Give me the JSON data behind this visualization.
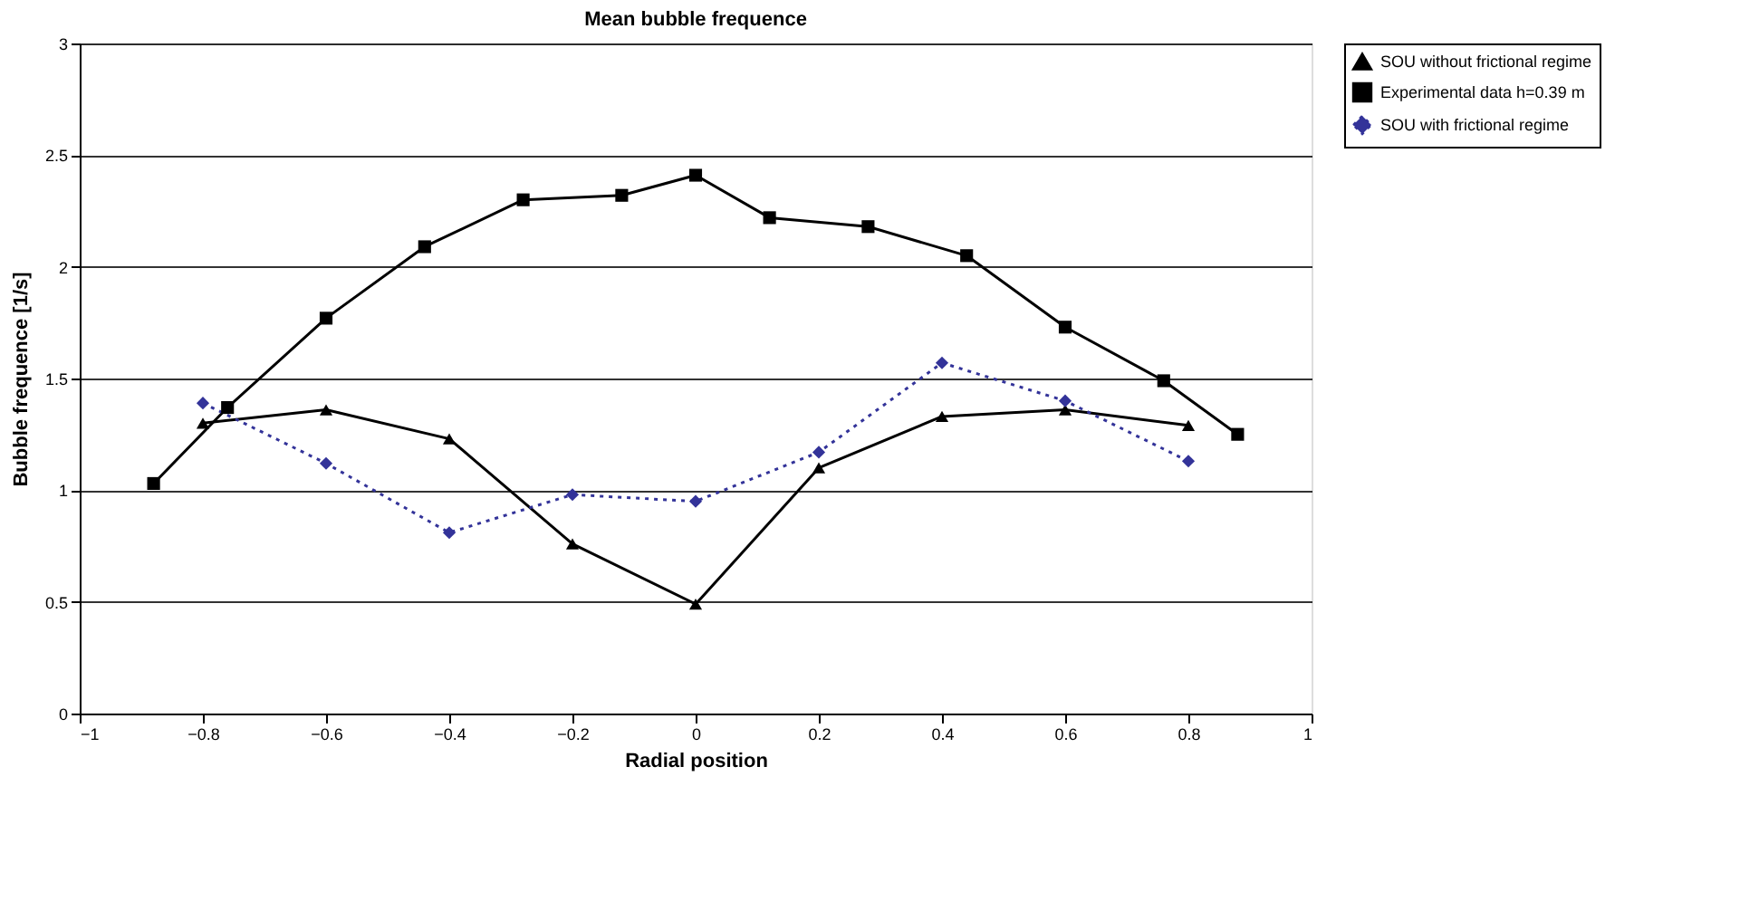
{
  "chart_data": {
    "type": "line",
    "title": "Mean bubble frequence",
    "xlabel": "Radial position",
    "ylabel": "Bubble frequence [1/s]",
    "xlim": [
      -1,
      1
    ],
    "xticks": [
      -1,
      -0.8,
      -0.6,
      -0.4,
      -0.2,
      0,
      0.2,
      0.4,
      0.6,
      0.8,
      1
    ],
    "ylim": [
      0,
      3
    ],
    "yticks": [
      0,
      0.5,
      1,
      1.5,
      2,
      2.5,
      3
    ],
    "grid": "y",
    "legend": "right",
    "series": [
      {
        "name": "SOU without frictional regime",
        "color": "#000000",
        "marker": "triangle",
        "line_style": "solid",
        "x": [
          -0.8,
          -0.6,
          -0.4,
          -0.2,
          0,
          0.2,
          0.4,
          0.6,
          0.8
        ],
        "values": [
          1.3,
          1.36,
          1.23,
          0.76,
          0.49,
          1.1,
          1.33,
          1.36,
          1.29
        ]
      },
      {
        "name": "Experimental data h=0.39 m",
        "color": "#000000",
        "marker": "square",
        "line_style": "solid",
        "x": [
          -0.88,
          -0.76,
          -0.6,
          -0.44,
          -0.28,
          -0.12,
          0,
          0.12,
          0.28,
          0.44,
          0.6,
          0.76,
          0.88
        ],
        "values": [
          1.03,
          1.37,
          1.77,
          2.09,
          2.3,
          2.32,
          2.41,
          2.22,
          2.18,
          2.05,
          1.73,
          1.49,
          1.25
        ]
      },
      {
        "name": "SOU with frictional regime",
        "color": "#333399",
        "marker": "diamond",
        "line_style": "dotted",
        "x": [
          -0.8,
          -0.6,
          -0.4,
          -0.2,
          0,
          0.2,
          0.4,
          0.6,
          0.8
        ],
        "values": [
          1.39,
          1.12,
          0.81,
          0.98,
          0.95,
          1.17,
          1.57,
          1.4,
          1.13
        ]
      }
    ]
  }
}
